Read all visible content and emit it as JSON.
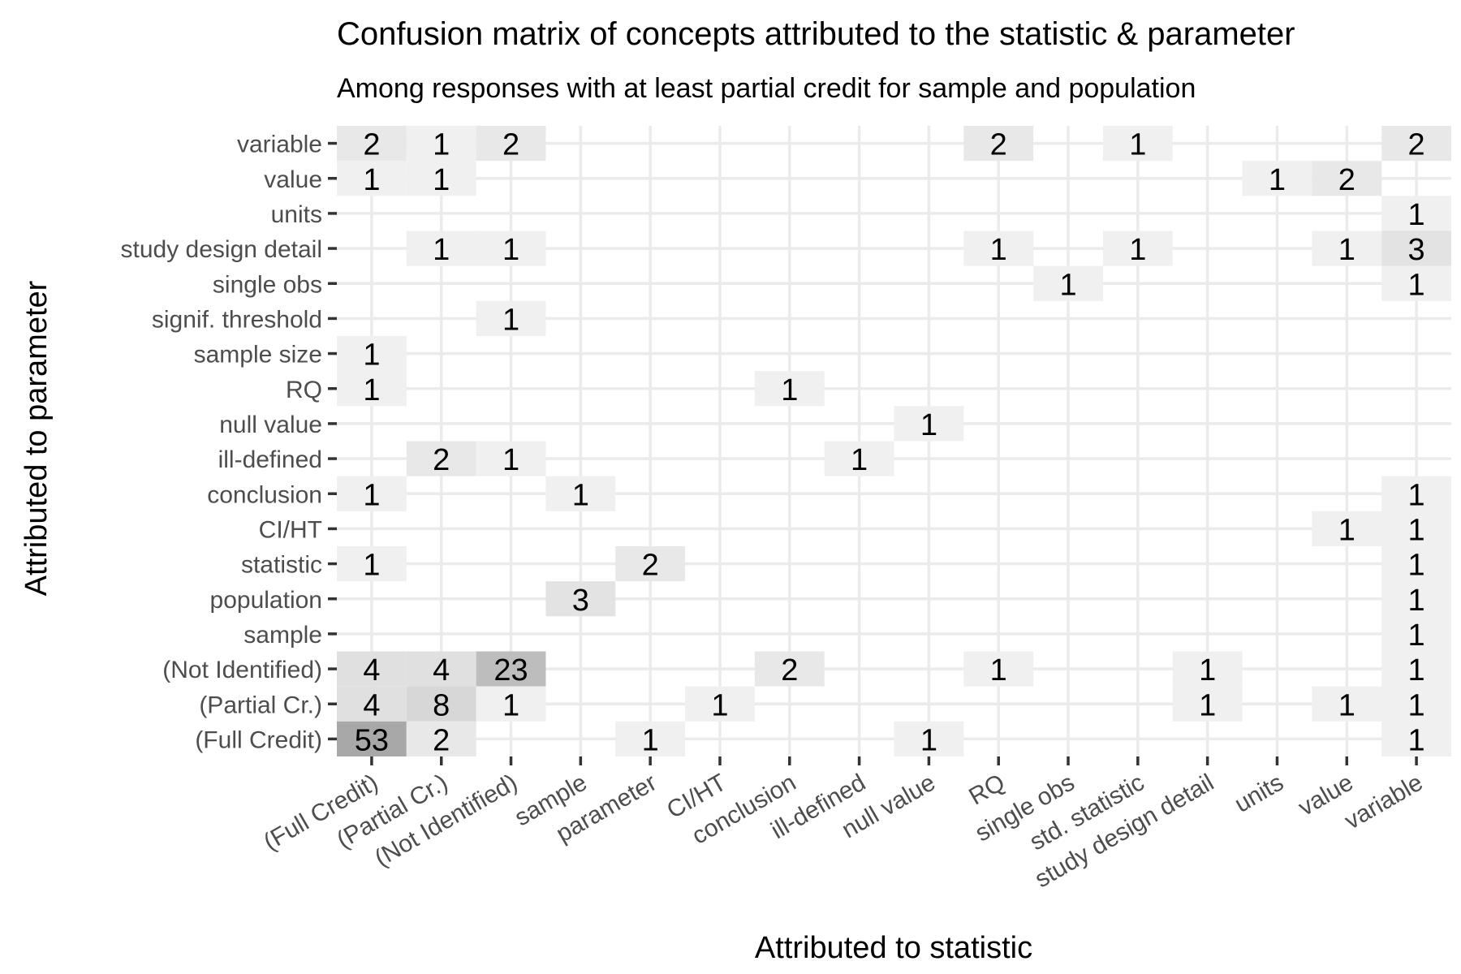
{
  "chart_data": {
    "type": "heatmap",
    "title": "Confusion matrix of concepts attributed to the statistic & parameter",
    "subtitle": "Among responses with at least partial credit for sample and population",
    "xlabel": "Attributed to statistic",
    "ylabel": "Attributed to parameter",
    "x_categories": [
      "(Full Credit)",
      "(Partial Cr.)",
      "(Not Identified)",
      "sample",
      "parameter",
      "CI/HT",
      "conclusion",
      "ill-defined",
      "null value",
      "RQ",
      "single obs",
      "std. statistic",
      "study design detail",
      "units",
      "value",
      "variable"
    ],
    "y_categories": [
      "(Full Credit)",
      "(Partial Cr.)",
      "(Not Identified)",
      "sample",
      "population",
      "statistic",
      "CI/HT",
      "conclusion",
      "ill-defined",
      "null value",
      "RQ",
      "sample size",
      "signif. threshold",
      "single obs",
      "study design detail",
      "units",
      "value",
      "variable"
    ],
    "cells": [
      {
        "x": "(Full Credit)",
        "y": "variable",
        "value": 2
      },
      {
        "x": "(Partial Cr.)",
        "y": "variable",
        "value": 1
      },
      {
        "x": "(Not Identified)",
        "y": "variable",
        "value": 2
      },
      {
        "x": "RQ",
        "y": "variable",
        "value": 2
      },
      {
        "x": "std. statistic",
        "y": "variable",
        "value": 1
      },
      {
        "x": "variable",
        "y": "variable",
        "value": 2
      },
      {
        "x": "(Full Credit)",
        "y": "value",
        "value": 1
      },
      {
        "x": "(Partial Cr.)",
        "y": "value",
        "value": 1
      },
      {
        "x": "units",
        "y": "value",
        "value": 1
      },
      {
        "x": "value",
        "y": "value",
        "value": 2
      },
      {
        "x": "variable",
        "y": "units",
        "value": 1
      },
      {
        "x": "(Partial Cr.)",
        "y": "study design detail",
        "value": 1
      },
      {
        "x": "(Not Identified)",
        "y": "study design detail",
        "value": 1
      },
      {
        "x": "RQ",
        "y": "study design detail",
        "value": 1
      },
      {
        "x": "std. statistic",
        "y": "study design detail",
        "value": 1
      },
      {
        "x": "value",
        "y": "study design detail",
        "value": 1
      },
      {
        "x": "variable",
        "y": "study design detail",
        "value": 3
      },
      {
        "x": "single obs",
        "y": "single obs",
        "value": 1
      },
      {
        "x": "variable",
        "y": "single obs",
        "value": 1
      },
      {
        "x": "(Not Identified)",
        "y": "signif. threshold",
        "value": 1
      },
      {
        "x": "(Full Credit)",
        "y": "sample size",
        "value": 1
      },
      {
        "x": "(Full Credit)",
        "y": "RQ",
        "value": 1
      },
      {
        "x": "conclusion",
        "y": "RQ",
        "value": 1
      },
      {
        "x": "null value",
        "y": "null value",
        "value": 1
      },
      {
        "x": "(Partial Cr.)",
        "y": "ill-defined",
        "value": 2
      },
      {
        "x": "(Not Identified)",
        "y": "ill-defined",
        "value": 1
      },
      {
        "x": "ill-defined",
        "y": "ill-defined",
        "value": 1
      },
      {
        "x": "(Full Credit)",
        "y": "conclusion",
        "value": 1
      },
      {
        "x": "sample",
        "y": "conclusion",
        "value": 1
      },
      {
        "x": "variable",
        "y": "conclusion",
        "value": 1
      },
      {
        "x": "value",
        "y": "CI/HT",
        "value": 1
      },
      {
        "x": "variable",
        "y": "CI/HT",
        "value": 1
      },
      {
        "x": "(Full Credit)",
        "y": "statistic",
        "value": 1
      },
      {
        "x": "parameter",
        "y": "statistic",
        "value": 2
      },
      {
        "x": "variable",
        "y": "statistic",
        "value": 1
      },
      {
        "x": "sample",
        "y": "population",
        "value": 3
      },
      {
        "x": "variable",
        "y": "population",
        "value": 1
      },
      {
        "x": "variable",
        "y": "sample",
        "value": 1
      },
      {
        "x": "(Full Credit)",
        "y": "(Not Identified)",
        "value": 4
      },
      {
        "x": "(Partial Cr.)",
        "y": "(Not Identified)",
        "value": 4
      },
      {
        "x": "(Not Identified)",
        "y": "(Not Identified)",
        "value": 23
      },
      {
        "x": "conclusion",
        "y": "(Not Identified)",
        "value": 2
      },
      {
        "x": "RQ",
        "y": "(Not Identified)",
        "value": 1
      },
      {
        "x": "study design detail",
        "y": "(Not Identified)",
        "value": 1
      },
      {
        "x": "variable",
        "y": "(Not Identified)",
        "value": 1
      },
      {
        "x": "(Full Credit)",
        "y": "(Partial Cr.)",
        "value": 4
      },
      {
        "x": "(Partial Cr.)",
        "y": "(Partial Cr.)",
        "value": 8
      },
      {
        "x": "(Not Identified)",
        "y": "(Partial Cr.)",
        "value": 1
      },
      {
        "x": "CI/HT",
        "y": "(Partial Cr.)",
        "value": 1
      },
      {
        "x": "study design detail",
        "y": "(Partial Cr.)",
        "value": 1
      },
      {
        "x": "value",
        "y": "(Partial Cr.)",
        "value": 1
      },
      {
        "x": "variable",
        "y": "(Partial Cr.)",
        "value": 1
      },
      {
        "x": "(Full Credit)",
        "y": "(Full Credit)",
        "value": 53
      },
      {
        "x": "(Partial Cr.)",
        "y": "(Full Credit)",
        "value": 2
      },
      {
        "x": "parameter",
        "y": "(Full Credit)",
        "value": 1
      },
      {
        "x": "null value",
        "y": "(Full Credit)",
        "value": 1
      },
      {
        "x": "variable",
        "y": "(Full Credit)",
        "value": 1
      }
    ],
    "color_scale": {
      "low": "#f0f0f0",
      "mid": "#d9d9d9",
      "high": "#a8a8a8"
    },
    "grid": true,
    "legend": "none"
  }
}
